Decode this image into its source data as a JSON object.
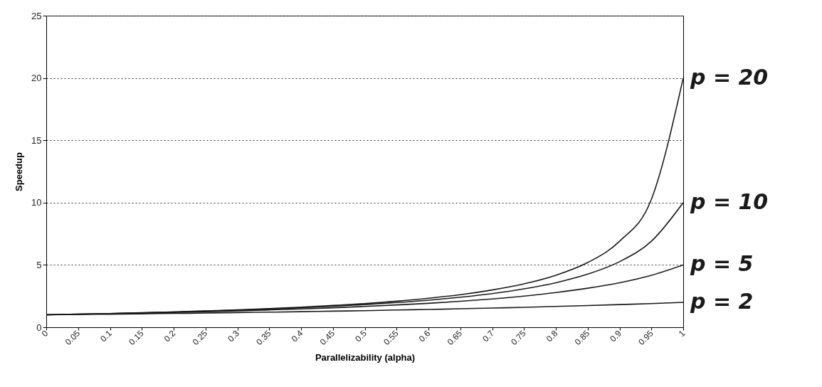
{
  "chart_data": {
    "type": "line",
    "xlabel": "Parallelizability (alpha)",
    "ylabel": "Speedup",
    "categories": [
      "0",
      "0.05",
      "0.1",
      "0.15",
      "0.2",
      "0.25",
      "0.3",
      "0.35",
      "0.4",
      "0.45",
      "0.5",
      "0.55",
      "0.6",
      "0.65",
      "0.7",
      "0.75",
      "0.8",
      "0.85",
      "0.9",
      "0.95",
      "1"
    ],
    "ylim": [
      0,
      25
    ],
    "yticks": [
      0,
      5,
      10,
      15,
      20,
      25
    ],
    "grid": "y",
    "series": [
      {
        "name": "p = 2",
        "color": "#1a1a1a",
        "values": [
          1,
          1.03,
          1.05,
          1.08,
          1.11,
          1.14,
          1.18,
          1.21,
          1.25,
          1.29,
          1.33,
          1.38,
          1.43,
          1.48,
          1.54,
          1.6,
          1.67,
          1.74,
          1.82,
          1.9,
          2
        ]
      },
      {
        "name": "p = 5",
        "color": "#1a1a1a",
        "values": [
          1,
          1.04,
          1.09,
          1.14,
          1.19,
          1.25,
          1.32,
          1.39,
          1.47,
          1.56,
          1.67,
          1.79,
          1.92,
          2.08,
          2.27,
          2.5,
          2.78,
          3.13,
          3.57,
          4.17,
          5
        ]
      },
      {
        "name": "p = 10",
        "color": "#1a1a1a",
        "values": [
          1,
          1.05,
          1.1,
          1.16,
          1.22,
          1.29,
          1.37,
          1.46,
          1.56,
          1.68,
          1.82,
          1.98,
          2.17,
          2.41,
          2.7,
          3.08,
          3.57,
          4.26,
          5.26,
          6.9,
          10
        ]
      },
      {
        "name": "p = 20",
        "color": "#1a1a1a",
        "values": [
          1,
          1.05,
          1.1,
          1.17,
          1.23,
          1.31,
          1.4,
          1.5,
          1.61,
          1.75,
          1.9,
          2.09,
          2.33,
          2.61,
          2.99,
          3.48,
          4.17,
          5.19,
          6.9,
          10.26,
          20
        ]
      }
    ]
  }
}
